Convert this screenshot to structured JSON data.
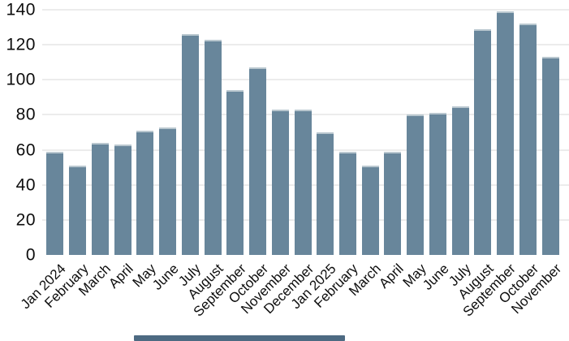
{
  "chart_data": {
    "type": "bar",
    "title": "",
    "xlabel": "",
    "ylabel": "",
    "categories": [
      "Jan 2024",
      "February",
      "March",
      "April",
      "May",
      "June",
      "July",
      "August",
      "September",
      "October",
      "November",
      "December",
      "Jan 2025",
      "February",
      "March",
      "April",
      "May",
      "June",
      "July",
      "August",
      "September",
      "October",
      "November"
    ],
    "values": [
      59,
      51,
      64,
      63,
      71,
      73,
      126,
      123,
      94,
      107,
      83,
      83,
      70,
      59,
      51,
      59,
      80,
      81,
      85,
      129,
      139,
      132,
      113
    ],
    "ylim": [
      0,
      140
    ],
    "yticks": [
      0,
      20,
      40,
      60,
      80,
      100,
      120,
      140
    ],
    "grid": true,
    "legend": false,
    "colors": {
      "bar_fill": "#68869B",
      "bar_top_edge": "#B9C7CF",
      "gridline": "#ECECEC",
      "label_text": "#0D0D0D",
      "background": "#FFFFFF",
      "scrollbar_thumb": "#4D6A82"
    }
  },
  "scrollbar": {
    "orientation": "horizontal"
  }
}
